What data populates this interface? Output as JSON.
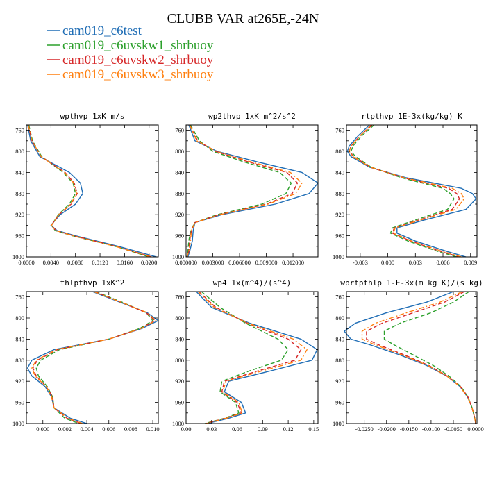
{
  "figure": {
    "title": "CLUBB VAR at265E,-24N"
  },
  "legend": [
    {
      "name": "cam019_c6test",
      "color": "#1f6db5",
      "dash": "solid"
    },
    {
      "name": "cam019_c6uvskw1_shrbuoy",
      "color": "#2ca02c",
      "dash": "dashed"
    },
    {
      "name": "cam019_c6uvskw2_shrbuoy",
      "color": "#d62728",
      "dash": "dashed"
    },
    {
      "name": "cam019_c6uvskw3_shrbuoy",
      "color": "#ff7f0e",
      "dash": "dashdot"
    }
  ],
  "chart_data": [
    {
      "type": "line",
      "title": "wpthvp  1xK m/s",
      "xlim": [
        0,
        0.0215
      ],
      "ylim": [
        1000,
        750
      ],
      "xticks": [
        0,
        0.004,
        0.008,
        0.012,
        0.016,
        0.02
      ],
      "xtick_labels": [
        "0.0000",
        "0.0040",
        "0.0080",
        "0.0120",
        "0.0160",
        "0.0200"
      ],
      "yticks": [
        760,
        800,
        840,
        880,
        920,
        960,
        1000
      ],
      "ytick_labels": [
        "760",
        "800",
        "840",
        "880",
        "920",
        "960",
        "1000"
      ],
      "y": [
        750,
        780,
        810,
        840,
        860,
        880,
        900,
        920,
        940,
        950,
        960,
        980,
        1000
      ],
      "series": [
        {
          "values": [
            0.0002,
            0.0007,
            0.0022,
            0.007,
            0.0088,
            0.0092,
            0.008,
            0.0055,
            0.004,
            0.005,
            0.008,
            0.015,
            0.0212
          ]
        },
        {
          "values": [
            0.0004,
            0.001,
            0.0025,
            0.006,
            0.0076,
            0.008,
            0.007,
            0.0052,
            0.0041,
            0.0047,
            0.0075,
            0.0145,
            0.02
          ]
        },
        {
          "values": [
            0.0003,
            0.0009,
            0.0024,
            0.0063,
            0.0078,
            0.0083,
            0.0073,
            0.0053,
            0.0041,
            0.0048,
            0.0077,
            0.0146,
            0.0204
          ]
        },
        {
          "values": [
            0.0003,
            0.0009,
            0.0024,
            0.0062,
            0.0077,
            0.0082,
            0.0072,
            0.0053,
            0.0041,
            0.0048,
            0.0076,
            0.0145,
            0.0202
          ]
        }
      ]
    },
    {
      "type": "line",
      "title": "wp2thvp  1xK m^2/s^2",
      "xlim": [
        0,
        0.0148
      ],
      "ylim": [
        1000,
        750
      ],
      "xticks": [
        0,
        0.003,
        0.006,
        0.009,
        0.012
      ],
      "xtick_labels": [
        "0.000000",
        "0.003000",
        "0.006000",
        "0.009000",
        "0.012000"
      ],
      "yticks": [
        760,
        800,
        840,
        880,
        920,
        960,
        1000
      ],
      "ytick_labels": [
        "760",
        "800",
        "840",
        "880",
        "920",
        "960",
        "1000"
      ],
      "y": [
        750,
        780,
        800,
        820,
        840,
        860,
        880,
        900,
        920,
        935,
        950,
        970,
        990,
        1000
      ],
      "series": [
        {
          "values": [
            0.0003,
            0.001,
            0.0035,
            0.008,
            0.013,
            0.0148,
            0.0138,
            0.01,
            0.004,
            0.001,
            0.0008,
            0.0007,
            0.0004,
            0.0002
          ]
        },
        {
          "values": [
            0.0005,
            0.0015,
            0.003,
            0.0065,
            0.0105,
            0.0118,
            0.0112,
            0.0085,
            0.0035,
            0.001,
            0.0005,
            0.0003,
            0.0002,
            0.0001
          ]
        },
        {
          "values": [
            0.0004,
            0.0013,
            0.0033,
            0.007,
            0.0113,
            0.0125,
            0.0119,
            0.009,
            0.0037,
            0.001,
            0.0006,
            0.0004,
            0.0003,
            0.0001
          ]
        },
        {
          "values": [
            0.0004,
            0.0012,
            0.0034,
            0.0073,
            0.0117,
            0.013,
            0.0123,
            0.0092,
            0.0038,
            0.001,
            0.0006,
            0.0005,
            0.0003,
            0.0001
          ]
        }
      ]
    },
    {
      "type": "line",
      "title": "rtpthvp  1E-3x(kg/kg) K",
      "xlim": [
        -0.0045,
        0.0097
      ],
      "ylim": [
        1000,
        750
      ],
      "xticks": [
        -0.003,
        0,
        0.003,
        0.006,
        0.009
      ],
      "xtick_labels": [
        "-0.003",
        "0.000",
        "0.003",
        "0.006",
        "0.009"
      ],
      "yticks": [
        760,
        800,
        840,
        880,
        920,
        960,
        1000
      ],
      "ytick_labels": [
        "760",
        "800",
        "840",
        "880",
        "920",
        "960",
        "1000"
      ],
      "y": [
        750,
        770,
        790,
        800,
        810,
        830,
        850,
        870,
        880,
        890,
        910,
        930,
        945,
        955,
        970,
        990,
        1000
      ],
      "series": [
        {
          "values": [
            -0.002,
            -0.0032,
            -0.0042,
            -0.0044,
            -0.004,
            -0.002,
            0.002,
            0.008,
            0.0092,
            0.0096,
            0.0085,
            0.004,
            0.001,
            0.001,
            0.003,
            0.0065,
            0.0085
          ]
        },
        {
          "values": [
            -0.0015,
            -0.0028,
            -0.0038,
            -0.004,
            -0.0035,
            -0.0018,
            0.0015,
            0.006,
            0.0068,
            0.0072,
            0.0065,
            0.003,
            0.0005,
            0.0003,
            0.0022,
            0.0055,
            0.0075
          ]
        },
        {
          "values": [
            -0.0017,
            -0.003,
            -0.004,
            -0.0042,
            -0.0037,
            -0.0019,
            0.0017,
            0.0066,
            0.0075,
            0.0078,
            0.007,
            0.0034,
            0.0007,
            0.0005,
            0.0025,
            0.0058,
            0.0078
          ]
        },
        {
          "values": [
            -0.0018,
            -0.003,
            -0.004,
            -0.0042,
            -0.0038,
            -0.0019,
            0.0018,
            0.007,
            0.008,
            0.0083,
            0.0074,
            0.0036,
            0.0008,
            0.0006,
            0.0026,
            0.006,
            0.008
          ]
        }
      ]
    },
    {
      "type": "line",
      "title": "thlpthvp  1xK^2",
      "xlim": [
        -0.0015,
        0.0105
      ],
      "ylim": [
        1000,
        750
      ],
      "xticks": [
        0,
        0.002,
        0.004,
        0.006,
        0.008,
        0.01
      ],
      "xtick_labels": [
        "0.000",
        "0.002",
        "0.004",
        "0.006",
        "0.008",
        "0.010"
      ],
      "yticks": [
        760,
        800,
        840,
        880,
        920,
        960,
        1000
      ],
      "ytick_labels": [
        "760",
        "800",
        "840",
        "880",
        "920",
        "960",
        "1000"
      ],
      "y": [
        750,
        770,
        790,
        805,
        820,
        840,
        860,
        880,
        895,
        910,
        930,
        950,
        970,
        990,
        1000
      ],
      "series": [
        {
          "values": [
            0.0045,
            0.007,
            0.0095,
            0.0105,
            0.009,
            0.006,
            0.001,
            -0.001,
            -0.0014,
            -0.001,
            0.0002,
            0.0008,
            0.001,
            0.0025,
            0.004
          ]
        },
        {
          "values": [
            0.0048,
            0.0072,
            0.0094,
            0.01,
            0.0088,
            0.006,
            0.0015,
            -0.0002,
            -0.0006,
            -0.0004,
            0.0004,
            0.0009,
            0.001,
            0.002,
            0.0033
          ]
        },
        {
          "values": [
            0.0047,
            0.0071,
            0.0094,
            0.0102,
            0.0089,
            0.006,
            0.0013,
            -0.0005,
            -0.0009,
            -0.0006,
            0.0003,
            0.0009,
            0.001,
            0.0022,
            0.0035
          ]
        },
        {
          "values": [
            0.0046,
            0.0071,
            0.0095,
            0.0103,
            0.0089,
            0.006,
            0.0012,
            -0.0006,
            -0.001,
            -0.0007,
            0.0003,
            0.0008,
            0.001,
            0.0023,
            0.0036
          ]
        }
      ]
    },
    {
      "type": "line",
      "title": "wp4  1x(m^4)/(s^4)",
      "xlim": [
        0,
        0.155
      ],
      "ylim": [
        1000,
        750
      ],
      "xticks": [
        0,
        0.03,
        0.06,
        0.09,
        0.12,
        0.15
      ],
      "xtick_labels": [
        "0.00",
        "0.03",
        "0.06",
        "0.09",
        "0.12",
        "0.15"
      ],
      "yticks": [
        760,
        800,
        840,
        880,
        920,
        960,
        1000
      ],
      "ytick_labels": [
        "760",
        "800",
        "840",
        "880",
        "920",
        "960",
        "1000"
      ],
      "y": [
        750,
        780,
        810,
        840,
        860,
        880,
        900,
        920,
        940,
        960,
        980,
        990,
        1000
      ],
      "series": [
        {
          "values": [
            0.012,
            0.03,
            0.075,
            0.135,
            0.154,
            0.148,
            0.1,
            0.05,
            0.045,
            0.065,
            0.07,
            0.05,
            0.025
          ]
        },
        {
          "values": [
            0.018,
            0.04,
            0.07,
            0.108,
            0.12,
            0.112,
            0.075,
            0.042,
            0.04,
            0.058,
            0.062,
            0.045,
            0.022
          ]
        },
        {
          "values": [
            0.015,
            0.035,
            0.072,
            0.12,
            0.135,
            0.128,
            0.085,
            0.045,
            0.042,
            0.06,
            0.065,
            0.046,
            0.023
          ]
        },
        {
          "values": [
            0.014,
            0.033,
            0.073,
            0.126,
            0.142,
            0.135,
            0.09,
            0.047,
            0.043,
            0.062,
            0.066,
            0.047,
            0.024
          ]
        }
      ]
    },
    {
      "type": "line",
      "title": "wprtpthlp  1-E-3x(m kg K)/(s kg)",
      "xlim": [
        -0.029,
        0.0003
      ],
      "ylim": [
        1000,
        750
      ],
      "xticks": [
        -0.025,
        -0.02,
        -0.015,
        -0.01,
        -0.005,
        0
      ],
      "xtick_labels": [
        "-0.0250",
        "-0.0200",
        "-0.0150",
        "-0.0100",
        "-0.0050",
        "0.0000"
      ],
      "yticks": [
        760,
        800,
        840,
        880,
        920,
        960,
        1000
      ],
      "ytick_labels": [
        "760",
        "800",
        "840",
        "880",
        "920",
        "960",
        "1000"
      ],
      "y": [
        750,
        770,
        790,
        810,
        825,
        840,
        850,
        870,
        890,
        910,
        930,
        950,
        970,
        990,
        1000
      ],
      "series": [
        {
          "values": [
            -0.005,
            -0.011,
            -0.02,
            -0.027,
            -0.0295,
            -0.028,
            -0.024,
            -0.017,
            -0.011,
            -0.0065,
            -0.0035,
            -0.0018,
            -0.0008,
            -0.0002,
            0.0
          ]
        },
        {
          "values": [
            -0.0015,
            -0.005,
            -0.01,
            -0.017,
            -0.0205,
            -0.0205,
            -0.0185,
            -0.014,
            -0.0095,
            -0.006,
            -0.0033,
            -0.0017,
            -0.0008,
            -0.0002,
            0.0
          ]
        },
        {
          "values": [
            -0.0025,
            -0.007,
            -0.014,
            -0.021,
            -0.0245,
            -0.0245,
            -0.022,
            -0.016,
            -0.0105,
            -0.0064,
            -0.0034,
            -0.0017,
            -0.0008,
            -0.0002,
            0.0
          ]
        },
        {
          "values": [
            -0.003,
            -0.008,
            -0.0155,
            -0.0225,
            -0.0255,
            -0.0255,
            -0.0228,
            -0.0165,
            -0.0107,
            -0.0065,
            -0.0035,
            -0.0018,
            -0.0008,
            -0.0002,
            0.0
          ]
        }
      ]
    }
  ]
}
